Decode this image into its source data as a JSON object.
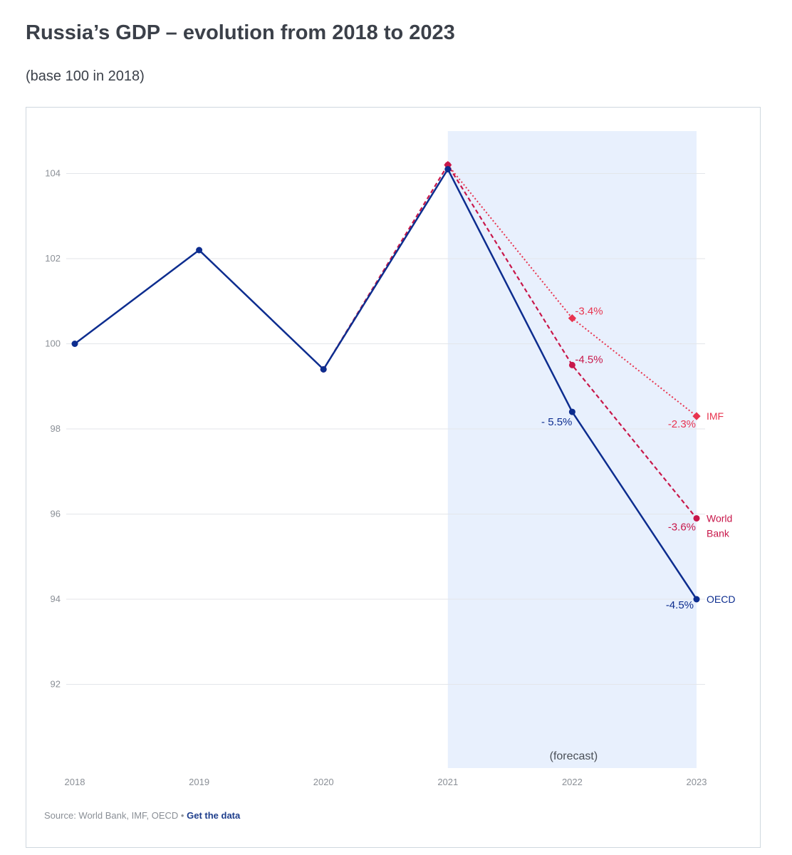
{
  "header": {
    "title": "Russia’s GDP – evolution from 2018 to 2023",
    "subtitle": "(base 100 in 2018)"
  },
  "footer": {
    "source_text": "Source: World Bank, IMF, OECD •",
    "link_label": "Get the data"
  },
  "colors": {
    "oecd": "#0d2d8f",
    "world_bank": "#c8174a",
    "imf": "#e8344f",
    "forecast_band": "#e8f0fd",
    "grid": "#e3e6ea",
    "tick": "#8a8f96"
  },
  "chart_data": {
    "type": "line",
    "title": "Russia’s GDP – evolution from 2018 to 2023",
    "subtitle": "(base 100 in 2018)",
    "xlabel": "",
    "ylabel": "",
    "x": [
      2018,
      2019,
      2020,
      2021,
      2022,
      2023
    ],
    "ylim": [
      90,
      105
    ],
    "yticks": [
      92,
      94,
      96,
      98,
      100,
      102,
      104
    ],
    "grid": true,
    "forecast_band": {
      "x_start": 2021,
      "x_end": 2023,
      "label": "(forecast)"
    },
    "series": [
      {
        "name": "OECD",
        "style": "solid",
        "marker": "circle",
        "points": [
          [
            2018,
            100
          ],
          [
            2019,
            102.2
          ],
          [
            2020,
            99.4
          ],
          [
            2021,
            104.1
          ],
          [
            2022,
            98.4
          ],
          [
            2023,
            94.0
          ]
        ],
        "annotations": [
          {
            "x": 2022,
            "y": 98.4,
            "text": "- 5.5%"
          },
          {
            "x": 2023,
            "y": 94.0,
            "text": "-4.5%"
          }
        ]
      },
      {
        "name": "World Bank",
        "style": "dashed",
        "marker": "circle",
        "points": [
          [
            2020,
            99.4
          ],
          [
            2021,
            104.2
          ],
          [
            2022,
            99.5
          ],
          [
            2023,
            95.9
          ]
        ],
        "annotations": [
          {
            "x": 2022,
            "y": 99.5,
            "text": "-4.5%"
          },
          {
            "x": 2023,
            "y": 95.9,
            "text": "-3.6%"
          }
        ]
      },
      {
        "name": "IMF",
        "style": "dotted",
        "marker": "diamond",
        "points": [
          [
            2021,
            104.2
          ],
          [
            2022,
            100.6
          ],
          [
            2023,
            98.3
          ]
        ],
        "annotations": [
          {
            "x": 2022,
            "y": 100.6,
            "text": "-3.4%"
          },
          {
            "x": 2023,
            "y": 98.3,
            "text": "-2.3%"
          }
        ]
      }
    ]
  }
}
